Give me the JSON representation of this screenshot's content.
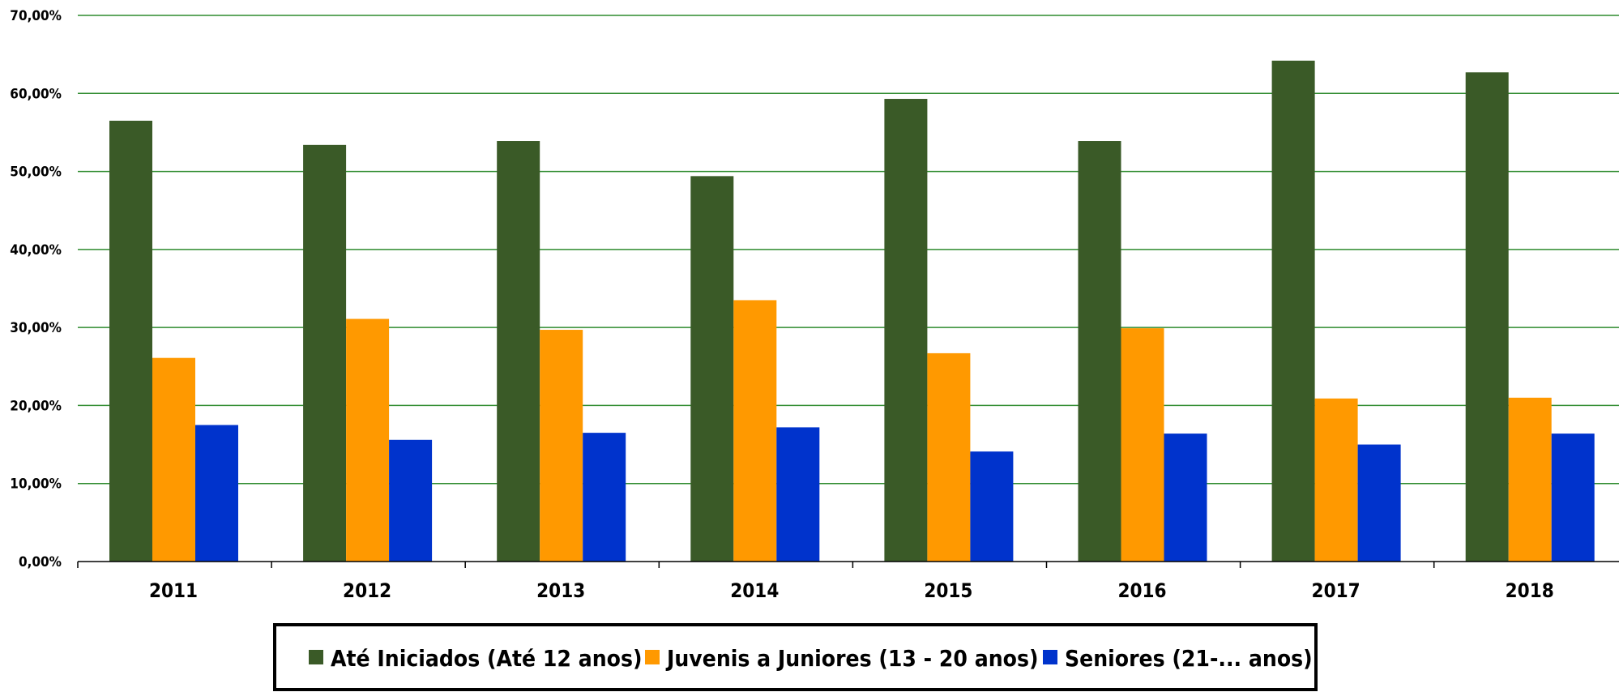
{
  "chart_data": {
    "type": "bar",
    "title": "",
    "xlabel": "",
    "ylabel": "",
    "categories": [
      "2011",
      "2012",
      "2013",
      "2014",
      "2015",
      "2016",
      "2017",
      "2018"
    ],
    "series": [
      {
        "name": "Até Iniciados (Até 12 anos)",
        "color": "#3a5a27",
        "values": [
          56.5,
          53.4,
          53.9,
          49.4,
          59.3,
          53.9,
          64.2,
          62.7
        ]
      },
      {
        "name": "Juvenis a Juniores (13 - 20 anos)",
        "color": "#ff9900",
        "values": [
          26.1,
          31.1,
          29.7,
          33.5,
          26.7,
          29.9,
          20.9,
          21.0
        ]
      },
      {
        "name": "Seniores (21-... anos)",
        "color": "#0033cc",
        "values": [
          17.5,
          15.6,
          16.5,
          17.2,
          14.1,
          16.4,
          15.0,
          16.4
        ]
      }
    ],
    "ylim": [
      0,
      70
    ],
    "yticks": [
      "0,00%",
      "10,00%",
      "20,00%",
      "30,00%",
      "40,00%",
      "50,00%",
      "60,00%",
      "70,00%"
    ],
    "grid": true,
    "grid_color": "#2e8b2e",
    "legend_position": "bottom"
  }
}
